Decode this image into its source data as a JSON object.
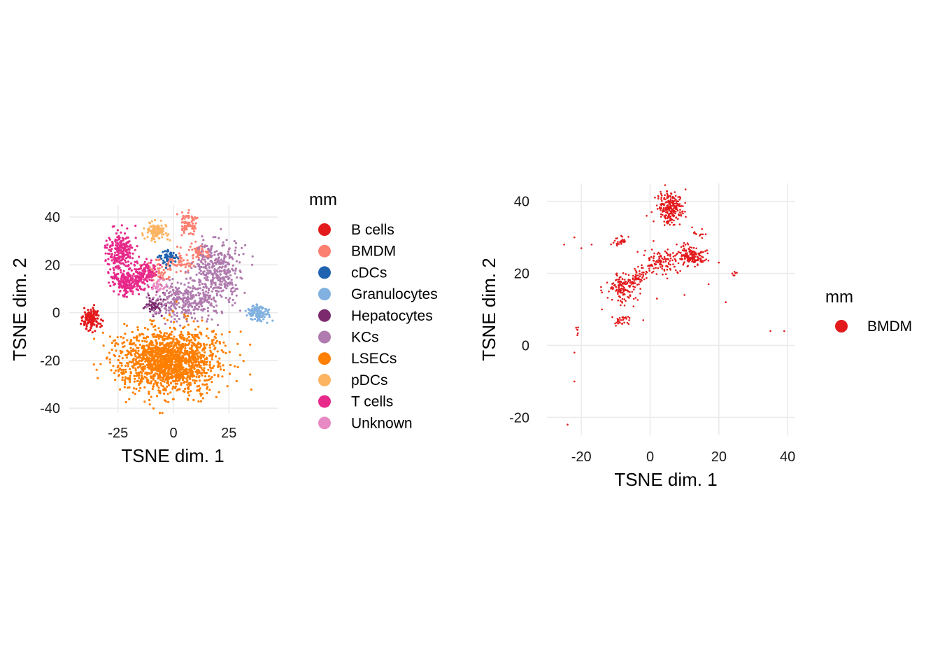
{
  "chart_data": [
    {
      "type": "scatter",
      "title": "",
      "xlabel": "TSNE dim. 1",
      "ylabel": "TSNE dim. 2",
      "xlim": [
        -47,
        47
      ],
      "ylim": [
        -42,
        45
      ],
      "xticks": [
        -25,
        0,
        25
      ],
      "yticks": [
        -40,
        -20,
        0,
        20,
        40
      ],
      "xtick_labels": [
        "-25",
        "0",
        "25"
      ],
      "ytick_labels": [
        "-40",
        "-20",
        "0",
        "20",
        "40"
      ],
      "grid": true,
      "legend": {
        "title": "mm",
        "position": "right",
        "entries": [
          {
            "label": "B cells",
            "color": "#E31A1C"
          },
          {
            "label": "BMDM",
            "color": "#FB8072"
          },
          {
            "label": "cDCs",
            "color": "#1F63B0"
          },
          {
            "label": "Granulocytes",
            "color": "#80B1E0"
          },
          {
            "label": "Hepatocytes",
            "color": "#7B2A6E"
          },
          {
            "label": "KCs",
            "color": "#B07BAE"
          },
          {
            "label": "LSECs",
            "color": "#FF7F00"
          },
          {
            "label": "pDCs",
            "color": "#FDB462"
          },
          {
            "label": "T cells",
            "color": "#E7298A"
          },
          {
            "label": "Unknown",
            "color": "#E78AC3"
          }
        ]
      },
      "clusters": [
        {
          "series": "B cells",
          "cx": -37,
          "cy": -3,
          "sx": 2.0,
          "sy": 2.5,
          "n": 140
        },
        {
          "series": "BMDM",
          "cx": 7,
          "cy": 37,
          "sx": 1.8,
          "sy": 2.2,
          "n": 80
        },
        {
          "series": "BMDM",
          "cx": 12,
          "cy": 25,
          "sx": 2.2,
          "sy": 1.5,
          "n": 60
        },
        {
          "series": "BMDM",
          "cx": -7,
          "cy": 17,
          "sx": 2.5,
          "sy": 2.5,
          "n": 60
        },
        {
          "series": "BMDM",
          "cx": 3,
          "cy": 21,
          "sx": 3.5,
          "sy": 2.0,
          "n": 60
        },
        {
          "series": "cDCs",
          "cx": -2,
          "cy": 23,
          "sx": 2.0,
          "sy": 1.7,
          "n": 50
        },
        {
          "series": "Granulocytes",
          "cx": 38,
          "cy": 0,
          "sx": 2.5,
          "sy": 1.8,
          "n": 120
        },
        {
          "series": "Hepatocytes",
          "cx": -9,
          "cy": 3,
          "sx": 2.0,
          "sy": 1.8,
          "n": 60
        },
        {
          "series": "KCs",
          "cx": 20,
          "cy": 18,
          "sx": 5.0,
          "sy": 6.0,
          "n": 360
        },
        {
          "series": "KCs",
          "cx": 5,
          "cy": 5,
          "sx": 7.0,
          "sy": 4.0,
          "n": 320
        },
        {
          "series": "LSECs",
          "cx": -2,
          "cy": -20,
          "sx": 11.0,
          "sy": 6.5,
          "n": 1600
        },
        {
          "series": "pDCs",
          "cx": -8,
          "cy": 34,
          "sx": 2.5,
          "sy": 2.0,
          "n": 100
        },
        {
          "series": "T cells",
          "cx": -24,
          "cy": 25,
          "sx": 3.0,
          "sy": 4.0,
          "n": 220
        },
        {
          "series": "T cells",
          "cx": -20,
          "cy": 13,
          "sx": 4.0,
          "sy": 2.8,
          "n": 220
        },
        {
          "series": "T cells",
          "cx": -13,
          "cy": 17,
          "sx": 2.5,
          "sy": 2.0,
          "n": 100
        },
        {
          "series": "Unknown",
          "cx": -6,
          "cy": 11,
          "sx": 1.8,
          "sy": 1.5,
          "n": 30
        }
      ]
    },
    {
      "type": "scatter",
      "title": "",
      "xlabel": "TSNE dim. 1",
      "ylabel": "TSNE dim. 2",
      "xlim": [
        -30,
        42
      ],
      "ylim": [
        -25,
        45
      ],
      "xticks": [
        -20,
        0,
        20,
        40
      ],
      "yticks": [
        -20,
        0,
        20,
        40
      ],
      "xtick_labels": [
        "-20",
        "0",
        "20",
        "40"
      ],
      "ytick_labels": [
        "-20",
        "0",
        "20",
        "40"
      ],
      "grid": true,
      "legend": {
        "title": "mm",
        "position": "right",
        "entries": [
          {
            "label": "BMDM",
            "color": "#E31A1C"
          }
        ]
      },
      "clusters": [
        {
          "series": "BMDM",
          "cx": 6,
          "cy": 38,
          "sx": 1.8,
          "sy": 2.2,
          "n": 240
        },
        {
          "series": "BMDM",
          "cx": 12,
          "cy": 25,
          "sx": 2.0,
          "sy": 1.4,
          "n": 160
        },
        {
          "series": "BMDM",
          "cx": -8,
          "cy": 16,
          "sx": 2.0,
          "sy": 2.0,
          "n": 140
        },
        {
          "series": "BMDM",
          "cx": -3,
          "cy": 19,
          "sx": 1.2,
          "sy": 1.2,
          "n": 40
        },
        {
          "series": "BMDM",
          "cx": 3,
          "cy": 23,
          "sx": 3.0,
          "sy": 1.8,
          "n": 120
        },
        {
          "series": "BMDM",
          "cx": -9,
          "cy": 29,
          "sx": 1.2,
          "sy": 0.8,
          "n": 30
        },
        {
          "series": "BMDM",
          "cx": -8,
          "cy": 7,
          "sx": 1.2,
          "sy": 0.8,
          "n": 30
        },
        {
          "series": "BMDM",
          "cx": 14,
          "cy": 31,
          "sx": 1.0,
          "sy": 0.6,
          "n": 12
        },
        {
          "series": "BMDM",
          "cx": 24,
          "cy": 20,
          "sx": 0.6,
          "sy": 0.4,
          "n": 6
        },
        {
          "series": "BMDM",
          "cx": -21,
          "cy": 4,
          "sx": 0.5,
          "sy": 0.7,
          "n": 6
        }
      ],
      "points": [
        {
          "series": "BMDM",
          "x": -25,
          "y": 28
        },
        {
          "series": "BMDM",
          "x": -22,
          "y": 30
        },
        {
          "series": "BMDM",
          "x": -20,
          "y": 27
        },
        {
          "series": "BMDM",
          "x": -17,
          "y": 28
        },
        {
          "series": "BMDM",
          "x": -14,
          "y": 10
        },
        {
          "series": "BMDM",
          "x": -22,
          "y": -2
        },
        {
          "series": "BMDM",
          "x": -22,
          "y": -10
        },
        {
          "series": "BMDM",
          "x": -24,
          "y": -22
        },
        {
          "series": "BMDM",
          "x": -1,
          "y": 36
        },
        {
          "series": "BMDM",
          "x": 2,
          "y": 13
        },
        {
          "series": "BMDM",
          "x": -2,
          "y": 7
        },
        {
          "series": "BMDM",
          "x": 20,
          "y": 23
        },
        {
          "series": "BMDM",
          "x": 35,
          "y": 4
        },
        {
          "series": "BMDM",
          "x": 39,
          "y": 4
        },
        {
          "series": "BMDM",
          "x": 10,
          "y": 14
        },
        {
          "series": "BMDM",
          "x": 17,
          "y": 17
        },
        {
          "series": "BMDM",
          "x": 22,
          "y": 12
        },
        {
          "series": "BMDM",
          "x": 1,
          "y": 29
        }
      ]
    }
  ]
}
